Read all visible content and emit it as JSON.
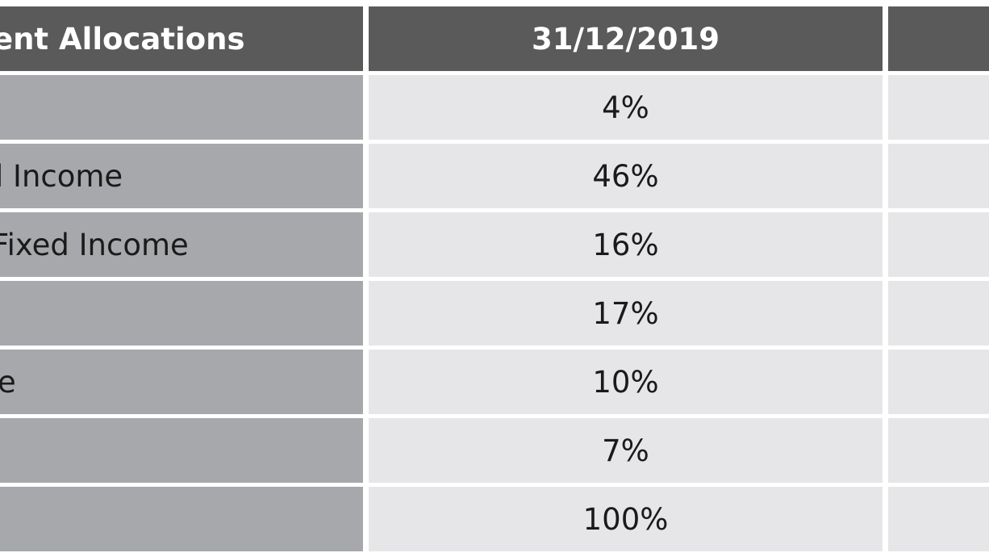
{
  "table": {
    "header": {
      "label": "ent Allocations",
      "date": "31/12/2019",
      "next": ""
    },
    "rows": [
      {
        "label": "",
        "value": "4%"
      },
      {
        "label": "l Income",
        "value": "46%"
      },
      {
        "label": "Fixed Income",
        "value": "16%"
      },
      {
        "label": "",
        "value": "17%"
      },
      {
        "label": "e",
        "value": "10%"
      },
      {
        "label": "",
        "value": "7%"
      },
      {
        "label": "",
        "value": "100%"
      }
    ]
  },
  "colors": {
    "header_bg": "#5a5a5a",
    "label_bg": "#a7a8ab",
    "value_bg": "#e6e6e8",
    "grid_line": "#ffffff"
  }
}
